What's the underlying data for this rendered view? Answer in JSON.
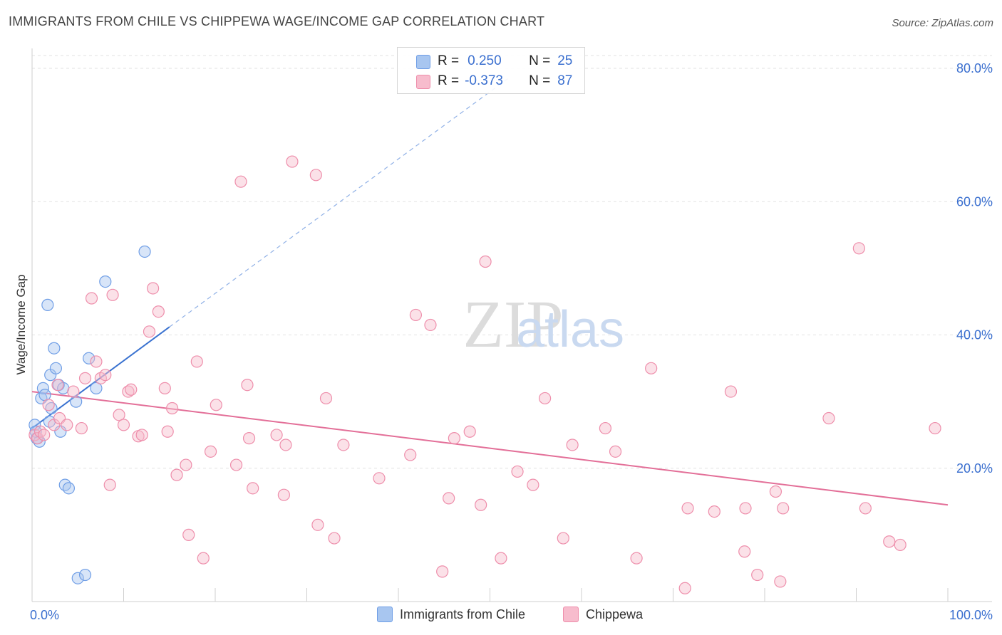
{
  "title": "IMMIGRANTS FROM CHILE VS CHIPPEWA WAGE/INCOME GAP CORRELATION CHART",
  "source": "Source: ZipAtlas.com",
  "watermark": {
    "zip": "ZIP",
    "atlas": "atlas"
  },
  "stats": [
    {
      "r_label": "R =",
      "r_value": "0.250",
      "n_label": "N =",
      "n_value": "25",
      "color": "#a8c6f0",
      "stroke": "#6f9ee6"
    },
    {
      "r_label": "R =",
      "r_value": "-0.373",
      "n_label": "N =",
      "n_value": "87",
      "color": "#f7bccd",
      "stroke": "#ee8eab"
    }
  ],
  "legend": [
    {
      "label": "Immigrants from Chile",
      "color": "#a8c6f0",
      "stroke": "#6f9ee6"
    },
    {
      "label": "Chippewa",
      "color": "#f7bccd",
      "stroke": "#ee8eab"
    }
  ],
  "chart_data": {
    "type": "scatter",
    "title": "IMMIGRANTS FROM CHILE VS CHIPPEWA WAGE/INCOME GAP CORRELATION CHART",
    "xlabel": "",
    "ylabel": "Wage/Income Gap",
    "xlim": [
      0,
      100
    ],
    "ylim": [
      0,
      80
    ],
    "x_tick_labels": [
      "0.0%",
      "100.0%"
    ],
    "y_ticks": [
      20,
      40,
      60,
      80
    ],
    "y_tick_labels": [
      "20.0%",
      "40.0%",
      "60.0%",
      "80.0%"
    ],
    "grid": true,
    "series": [
      {
        "name": "Immigrants from Chile",
        "color": "#a8c6f0",
        "stroke": "#6f9ee6",
        "trend": {
          "x0": 0,
          "y0": 26,
          "x1": 15,
          "y1": 41.2,
          "dashed_to_x": 52,
          "dashed_to_y": 78.5,
          "color": "#3a72d0"
        },
        "points": [
          {
            "x": 0.3,
            "y": 26.5
          },
          {
            "x": 0.5,
            "y": 24.5
          },
          {
            "x": 0.8,
            "y": 24.0
          },
          {
            "x": 1.0,
            "y": 30.5
          },
          {
            "x": 1.2,
            "y": 32.0
          },
          {
            "x": 1.4,
            "y": 31.0
          },
          {
            "x": 1.7,
            "y": 44.5
          },
          {
            "x": 1.9,
            "y": 27.0
          },
          {
            "x": 2.0,
            "y": 34.0
          },
          {
            "x": 2.1,
            "y": 29.0
          },
          {
            "x": 2.4,
            "y": 38.0
          },
          {
            "x": 2.6,
            "y": 35.0
          },
          {
            "x": 2.9,
            "y": 32.5
          },
          {
            "x": 3.1,
            "y": 25.5
          },
          {
            "x": 3.4,
            "y": 32.0
          },
          {
            "x": 3.6,
            "y": 17.5
          },
          {
            "x": 4.0,
            "y": 17.0
          },
          {
            "x": 4.8,
            "y": 30.0
          },
          {
            "x": 5.0,
            "y": 3.5
          },
          {
            "x": 5.8,
            "y": 4.0
          },
          {
            "x": 6.2,
            "y": 36.5
          },
          {
            "x": 7.0,
            "y": 32.0
          },
          {
            "x": 8.0,
            "y": 48.0
          },
          {
            "x": 12.3,
            "y": 52.5
          },
          {
            "x": 0.4,
            "y": 25.5
          }
        ]
      },
      {
        "name": "Chippewa",
        "color": "#f7bccd",
        "stroke": "#ee8eab",
        "trend": {
          "x0": 0,
          "y0": 31.5,
          "x1": 100,
          "y1": 14.5,
          "color": "#e36f98"
        },
        "points": [
          {
            "x": 0.3,
            "y": 25.0
          },
          {
            "x": 0.6,
            "y": 24.5
          },
          {
            "x": 0.9,
            "y": 25.5
          },
          {
            "x": 1.3,
            "y": 25.0
          },
          {
            "x": 1.8,
            "y": 29.5
          },
          {
            "x": 2.4,
            "y": 26.5
          },
          {
            "x": 2.8,
            "y": 32.5
          },
          {
            "x": 3.0,
            "y": 27.5
          },
          {
            "x": 3.8,
            "y": 26.5
          },
          {
            "x": 4.5,
            "y": 31.5
          },
          {
            "x": 5.4,
            "y": 26.0
          },
          {
            "x": 5.8,
            "y": 33.5
          },
          {
            "x": 6.5,
            "y": 45.5
          },
          {
            "x": 7.0,
            "y": 36.0
          },
          {
            "x": 7.5,
            "y": 33.5
          },
          {
            "x": 8.0,
            "y": 34.0
          },
          {
            "x": 8.5,
            "y": 17.5
          },
          {
            "x": 8.8,
            "y": 46.0
          },
          {
            "x": 9.5,
            "y": 28.0
          },
          {
            "x": 10.0,
            "y": 26.5
          },
          {
            "x": 10.5,
            "y": 31.5
          },
          {
            "x": 10.8,
            "y": 31.8
          },
          {
            "x": 11.6,
            "y": 24.8
          },
          {
            "x": 12.0,
            "y": 25.0
          },
          {
            "x": 12.8,
            "y": 40.5
          },
          {
            "x": 13.2,
            "y": 47.0
          },
          {
            "x": 13.8,
            "y": 43.5
          },
          {
            "x": 14.5,
            "y": 32.0
          },
          {
            "x": 14.8,
            "y": 25.5
          },
          {
            "x": 15.3,
            "y": 29.0
          },
          {
            "x": 15.8,
            "y": 19.0
          },
          {
            "x": 16.8,
            "y": 20.5
          },
          {
            "x": 17.1,
            "y": 10.0
          },
          {
            "x": 18.0,
            "y": 36.0
          },
          {
            "x": 18.7,
            "y": 6.5
          },
          {
            "x": 19.5,
            "y": 22.5
          },
          {
            "x": 20.1,
            "y": 29.5
          },
          {
            "x": 22.3,
            "y": 20.5
          },
          {
            "x": 22.8,
            "y": 63.0
          },
          {
            "x": 23.5,
            "y": 32.5
          },
          {
            "x": 23.7,
            "y": 24.5
          },
          {
            "x": 24.1,
            "y": 17.0
          },
          {
            "x": 26.7,
            "y": 25.0
          },
          {
            "x": 27.5,
            "y": 16.0
          },
          {
            "x": 27.7,
            "y": 23.5
          },
          {
            "x": 28.4,
            "y": 66.0
          },
          {
            "x": 31.0,
            "y": 64.0
          },
          {
            "x": 31.2,
            "y": 11.5
          },
          {
            "x": 32.1,
            "y": 30.5
          },
          {
            "x": 33.0,
            "y": 9.5
          },
          {
            "x": 34.0,
            "y": 23.5
          },
          {
            "x": 37.9,
            "y": 18.5
          },
          {
            "x": 41.3,
            "y": 22.0
          },
          {
            "x": 41.9,
            "y": 43.0
          },
          {
            "x": 43.5,
            "y": 41.5
          },
          {
            "x": 44.8,
            "y": 4.5
          },
          {
            "x": 45.5,
            "y": 15.5
          },
          {
            "x": 46.1,
            "y": 24.5
          },
          {
            "x": 47.8,
            "y": 25.5
          },
          {
            "x": 49.0,
            "y": 14.5
          },
          {
            "x": 49.5,
            "y": 51.0
          },
          {
            "x": 51.2,
            "y": 6.5
          },
          {
            "x": 53.0,
            "y": 19.5
          },
          {
            "x": 54.7,
            "y": 17.5
          },
          {
            "x": 56.0,
            "y": 30.5
          },
          {
            "x": 58.0,
            "y": 9.5
          },
          {
            "x": 59.0,
            "y": 23.5
          },
          {
            "x": 62.6,
            "y": 26.0
          },
          {
            "x": 63.7,
            "y": 22.5
          },
          {
            "x": 66.0,
            "y": 6.5
          },
          {
            "x": 67.6,
            "y": 35.0
          },
          {
            "x": 71.3,
            "y": 2.0
          },
          {
            "x": 71.6,
            "y": 14.0
          },
          {
            "x": 74.5,
            "y": 13.5
          },
          {
            "x": 76.3,
            "y": 31.5
          },
          {
            "x": 77.8,
            "y": 7.5
          },
          {
            "x": 77.9,
            "y": 14.0
          },
          {
            "x": 79.2,
            "y": 4.0
          },
          {
            "x": 81.2,
            "y": 16.5
          },
          {
            "x": 81.7,
            "y": 3.0
          },
          {
            "x": 82.0,
            "y": 14.0
          },
          {
            "x": 87.0,
            "y": 27.5
          },
          {
            "x": 90.3,
            "y": 53.0
          },
          {
            "x": 91.0,
            "y": 14.0
          },
          {
            "x": 93.6,
            "y": 9.0
          },
          {
            "x": 94.8,
            "y": 8.5
          },
          {
            "x": 98.6,
            "y": 26.0
          }
        ]
      }
    ]
  }
}
